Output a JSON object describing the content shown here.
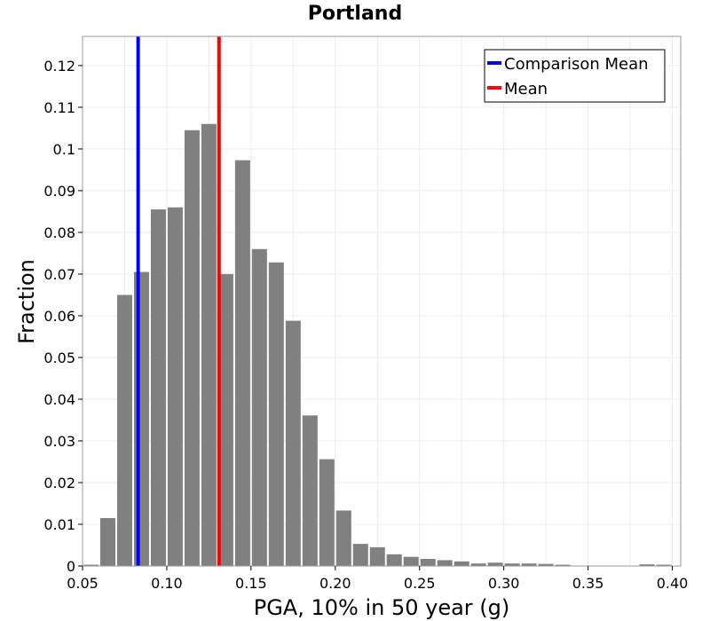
{
  "chart_data": {
    "type": "bar",
    "title": "Portland",
    "xlabel": "PGA, 10% in 50 year (g)",
    "ylabel": "Fraction",
    "xlim": [
      0.05,
      0.405
    ],
    "ylim": [
      0,
      0.127
    ],
    "x_ticks": [
      0.05,
      0.1,
      0.15,
      0.2,
      0.25,
      0.3,
      0.35,
      0.4
    ],
    "x_tick_labels": [
      "0.05",
      "0.10",
      "0.15",
      "0.20",
      "0.25",
      "0.30",
      "0.35",
      "0.40"
    ],
    "y_ticks": [
      0,
      0.01,
      0.02,
      0.03,
      0.04,
      0.05,
      0.06,
      0.07,
      0.08,
      0.09,
      0.1,
      0.11,
      0.12
    ],
    "y_tick_labels": [
      "0",
      "0.01",
      "0.02",
      "0.03",
      "0.04",
      "0.05",
      "0.06",
      "0.07",
      "0.08",
      "0.09",
      "0.1",
      "0.11",
      "0.12"
    ],
    "grid": true,
    "bar_color": "#808080",
    "bin_width": 0.01,
    "bins": [
      {
        "x": 0.055,
        "value": 0.0003
      },
      {
        "x": 0.065,
        "value": 0.0115
      },
      {
        "x": 0.075,
        "value": 0.065
      },
      {
        "x": 0.085,
        "value": 0.0705
      },
      {
        "x": 0.095,
        "value": 0.0855
      },
      {
        "x": 0.105,
        "value": 0.086
      },
      {
        "x": 0.115,
        "value": 0.1045
      },
      {
        "x": 0.125,
        "value": 0.106
      },
      {
        "x": 0.135,
        "value": 0.07
      },
      {
        "x": 0.145,
        "value": 0.0973
      },
      {
        "x": 0.155,
        "value": 0.076
      },
      {
        "x": 0.165,
        "value": 0.0728
      },
      {
        "x": 0.175,
        "value": 0.0588
      },
      {
        "x": 0.185,
        "value": 0.0361
      },
      {
        "x": 0.195,
        "value": 0.0256
      },
      {
        "x": 0.205,
        "value": 0.0133
      },
      {
        "x": 0.215,
        "value": 0.0053
      },
      {
        "x": 0.225,
        "value": 0.0045
      },
      {
        "x": 0.235,
        "value": 0.0028
      },
      {
        "x": 0.245,
        "value": 0.0022
      },
      {
        "x": 0.255,
        "value": 0.0017
      },
      {
        "x": 0.265,
        "value": 0.0014
      },
      {
        "x": 0.275,
        "value": 0.0011
      },
      {
        "x": 0.285,
        "value": 0.0006
      },
      {
        "x": 0.295,
        "value": 0.0008
      },
      {
        "x": 0.305,
        "value": 0.0006
      },
      {
        "x": 0.315,
        "value": 0.0006
      },
      {
        "x": 0.325,
        "value": 0.0005
      },
      {
        "x": 0.335,
        "value": 0.0003
      },
      {
        "x": 0.345,
        "value": 0.0001
      },
      {
        "x": 0.355,
        "value": 0.0001
      },
      {
        "x": 0.365,
        "value": 0.0001
      },
      {
        "x": 0.375,
        "value": 0.0001
      },
      {
        "x": 0.385,
        "value": 0.0004
      },
      {
        "x": 0.395,
        "value": 0.0003
      }
    ],
    "vlines": [
      {
        "name": "Comparison Mean",
        "x": 0.083,
        "color": "#0000ff"
      },
      {
        "name": "Mean",
        "x": 0.131,
        "color": "#ff0000"
      }
    ],
    "legend_position": "top-right"
  }
}
